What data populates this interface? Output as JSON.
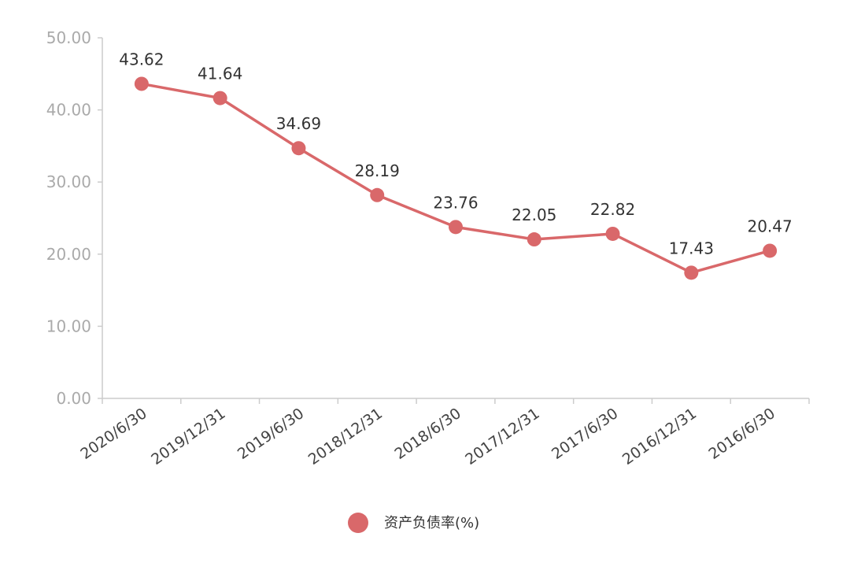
{
  "chart_data": {
    "type": "line",
    "title": "",
    "xlabel": "",
    "ylabel": "",
    "categories": [
      "2020/6/30",
      "2019/12/31",
      "2019/6/30",
      "2018/12/31",
      "2018/6/30",
      "2017/12/31",
      "2017/6/30",
      "2016/12/31",
      "2016/6/30"
    ],
    "series": [
      {
        "name": "资产负债率(%)",
        "values": [
          43.62,
          41.64,
          34.69,
          28.19,
          23.76,
          22.05,
          22.82,
          17.43,
          20.47
        ],
        "color": "#d9686a"
      }
    ],
    "ylim": [
      0,
      50
    ],
    "yticks": [
      "0.00",
      "10.00",
      "20.00",
      "30.00",
      "40.00",
      "50.00"
    ],
    "grid": false,
    "legend": "bottom-center"
  }
}
